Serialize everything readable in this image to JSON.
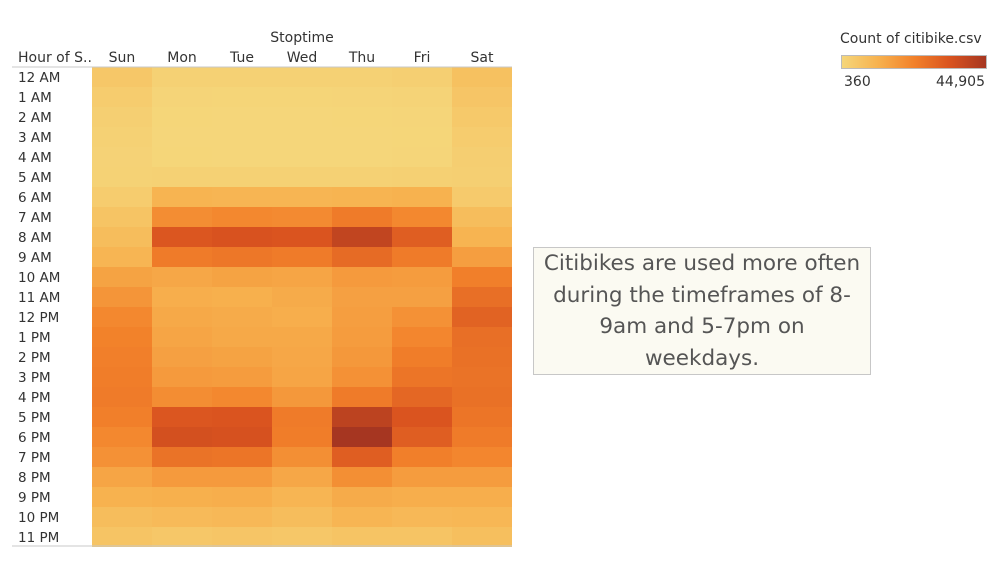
{
  "chart_data": {
    "type": "heatmap",
    "column_title": "Stoptime",
    "row_header": "Hour of S..",
    "columns": [
      "Sun",
      "Mon",
      "Tue",
      "Wed",
      "Thu",
      "Fri",
      "Sat"
    ],
    "rows": [
      "12 AM",
      "1 AM",
      "2 AM",
      "3 AM",
      "4 AM",
      "5 AM",
      "6 AM",
      "7 AM",
      "8 AM",
      "9 AM",
      "10 AM",
      "11 AM",
      "12 PM",
      "1 PM",
      "2 PM",
      "3 PM",
      "4 PM",
      "5 PM",
      "6 PM",
      "7 PM",
      "8 PM",
      "9 PM",
      "10 PM",
      "11 PM"
    ],
    "values": [
      [
        5000,
        2000,
        1800,
        1800,
        2000,
        2500,
        7000
      ],
      [
        3500,
        900,
        800,
        800,
        900,
        1200,
        5500
      ],
      [
        2500,
        500,
        450,
        450,
        500,
        700,
        4500
      ],
      [
        1800,
        400,
        360,
        400,
        400,
        500,
        3500
      ],
      [
        1500,
        500,
        450,
        450,
        450,
        600,
        2800
      ],
      [
        1600,
        2000,
        1800,
        2000,
        2000,
        2200,
        2500
      ],
      [
        3500,
        11000,
        10500,
        10500,
        11000,
        11500,
        4000
      ],
      [
        6000,
        20000,
        21000,
        20500,
        24000,
        21000,
        8000
      ],
      [
        8000,
        33000,
        34000,
        33500,
        39000,
        31000,
        11000
      ],
      [
        10500,
        24000,
        25000,
        24000,
        28000,
        24000,
        16000
      ],
      [
        15000,
        14000,
        15000,
        14500,
        17000,
        16500,
        23000
      ],
      [
        18000,
        12500,
        12000,
        13000,
        15500,
        15500,
        27000
      ],
      [
        21000,
        13500,
        13000,
        12500,
        16000,
        19000,
        30000
      ],
      [
        22500,
        14500,
        13500,
        13500,
        16500,
        21500,
        27000
      ],
      [
        23000,
        15500,
        15000,
        14000,
        17500,
        23500,
        26500
      ],
      [
        23500,
        17000,
        16500,
        14500,
        19000,
        25500,
        26000
      ],
      [
        24000,
        20000,
        21000,
        17500,
        24000,
        29000,
        26500
      ],
      [
        23000,
        33000,
        33500,
        24000,
        40000,
        33500,
        25500
      ],
      [
        21000,
        35000,
        34500,
        23500,
        44905,
        31000,
        24000
      ],
      [
        19000,
        26000,
        25500,
        19500,
        31000,
        23000,
        21500
      ],
      [
        14500,
        17000,
        17000,
        14000,
        19500,
        16500,
        16500
      ],
      [
        11500,
        12000,
        12500,
        10500,
        13000,
        12500,
        12500
      ],
      [
        8000,
        9000,
        9500,
        8000,
        10500,
        9500,
        10000
      ],
      [
        6000,
        5000,
        5500,
        5000,
        6000,
        6000,
        7500
      ]
    ],
    "color_legend": {
      "title": "Count of citibike.csv",
      "min": 360,
      "max": 44905,
      "min_label": "360",
      "max_label": "44,905",
      "color_stops": [
        "#f5d67a",
        "#f7b24f",
        "#f2812a",
        "#d9531f",
        "#a63621"
      ]
    },
    "annotation": "Citibikes are used more often during the timeframes of 8-9am and 5-7pm on weekdays."
  }
}
